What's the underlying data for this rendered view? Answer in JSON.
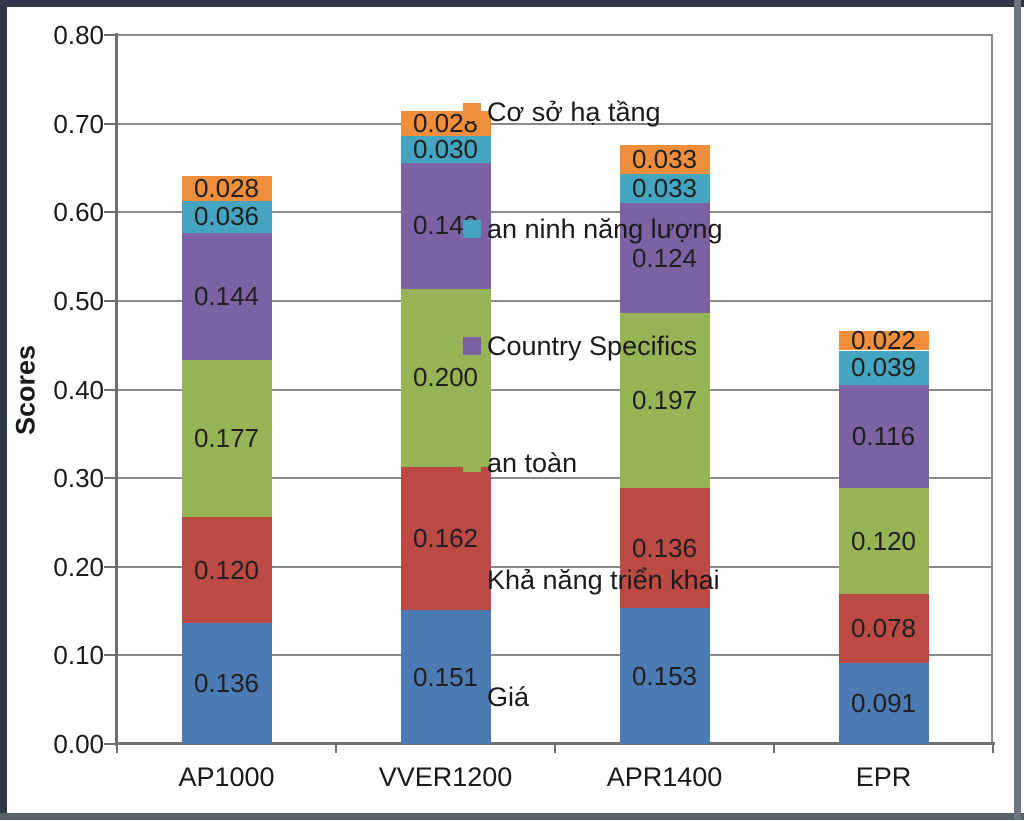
{
  "chart_data": {
    "type": "bar",
    "stacked": true,
    "title": "",
    "xlabel": "",
    "ylabel": "Scores",
    "ylim": [
      0,
      0.8
    ],
    "yticks": [
      0,
      0.1,
      0.2,
      0.3,
      0.4,
      0.5,
      0.6,
      0.7,
      0.8
    ],
    "ytick_labels": [
      "0.00",
      "0.10",
      "0.20",
      "0.30",
      "0.40",
      "0.50",
      "0.60",
      "0.70",
      "0.80"
    ],
    "grid": true,
    "legend_position": "overlay-center",
    "categories": [
      "AP1000",
      "VVER1200",
      "APR1400",
      "EPR"
    ],
    "series": [
      {
        "name": "Giá",
        "color": "#4b7bb2",
        "values": [
          0.136,
          0.151,
          0.153,
          0.091
        ]
      },
      {
        "name": "Khả năng triển khai",
        "color": "#bb4a44",
        "values": [
          0.12,
          0.162,
          0.136,
          0.078
        ]
      },
      {
        "name": "an toàn",
        "color": "#96b355",
        "values": [
          0.177,
          0.2,
          0.197,
          0.12
        ]
      },
      {
        "name": "Country Specifics",
        "color": "#7c61a3",
        "values": [
          0.144,
          0.143,
          0.124,
          0.116
        ]
      },
      {
        "name": "an ninh năng lượng",
        "color": "#45a5c0",
        "values": [
          0.036,
          0.03,
          0.033,
          0.039
        ]
      },
      {
        "name": "Cơ sở hạ tầng",
        "color": "#ef8f3e",
        "values": [
          0.028,
          0.028,
          0.033,
          0.022
        ]
      }
    ],
    "value_label_decimals": 3,
    "legend_order_top_to_bottom": [
      "Cơ sở hạ tầng",
      "an ninh năng lượng",
      "Country Specifics",
      "an toàn",
      "Khả năng triển khai",
      "Giá"
    ]
  },
  "colors": {
    "gridline": "#8a8a8a",
    "axis": "#6f6f6f",
    "text": "#1a1a1a",
    "frame_dark": "#2e3848",
    "frame_light": "#6e747e"
  }
}
